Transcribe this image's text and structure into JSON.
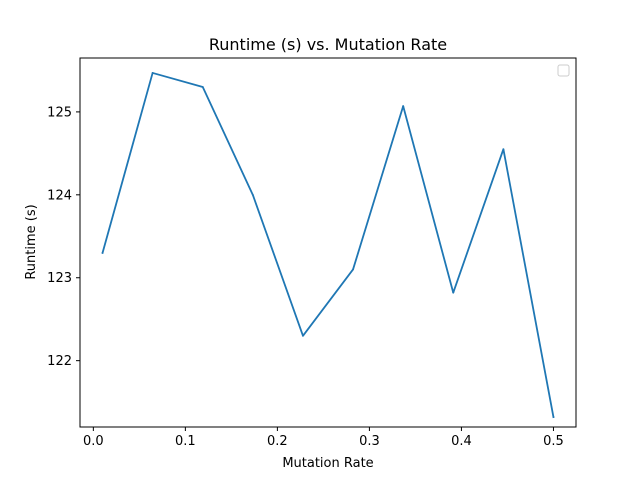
{
  "chart_data": {
    "type": "line",
    "title": "Runtime (s) vs. Mutation Rate",
    "xlabel": "Mutation Rate",
    "ylabel": "Runtime (s)",
    "xlim": [
      -0.0145,
      0.5245
    ],
    "ylim": [
      121.2,
      125.65
    ],
    "xticks": [
      0,
      0.1,
      0.2,
      0.3,
      0.4,
      0.5
    ],
    "xtick_labels": [
      "0.0",
      "0.1",
      "0.2",
      "0.3",
      "0.4",
      "0.5"
    ],
    "yticks": [
      122,
      123,
      124,
      125
    ],
    "ytick_labels": [
      "122",
      "123",
      "124",
      "125"
    ],
    "grid": false,
    "legend": {
      "placement": "top-right",
      "entries": []
    },
    "series": [
      {
        "color": "#1f77b4",
        "x": [
          0.01,
          0.0644,
          0.1189,
          0.1733,
          0.2278,
          0.2822,
          0.3367,
          0.3911,
          0.4456,
          0.5
        ],
        "y": [
          123.3,
          125.47,
          125.3,
          124.0,
          122.3,
          123.1,
          125.07,
          122.82,
          124.55,
          121.32
        ]
      }
    ]
  }
}
